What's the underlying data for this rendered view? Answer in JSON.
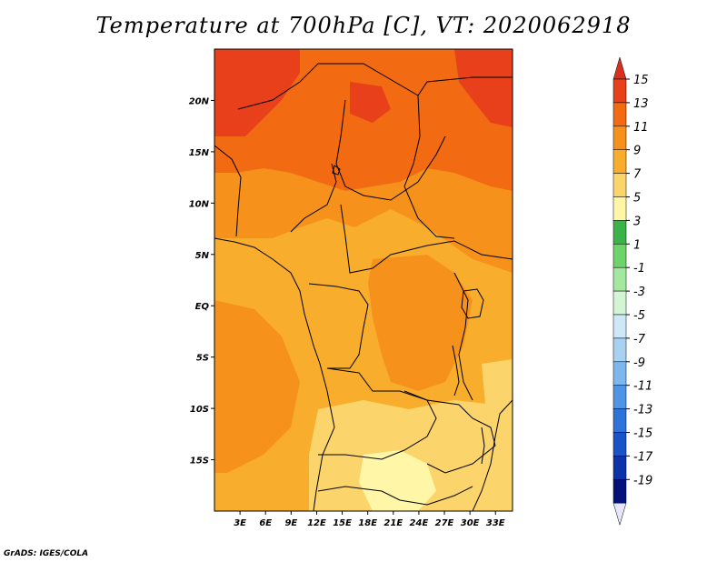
{
  "title": "Temperature at 700hPa [C], VT: 2020062918",
  "credit": "GrADS: IGES/COLA",
  "map": {
    "lon_range": [
      0,
      35
    ],
    "lat_range": [
      -20,
      25
    ],
    "lon_ticks": [
      "3E",
      "6E",
      "9E",
      "12E",
      "15E",
      "18E",
      "21E",
      "24E",
      "27E",
      "30E",
      "33E"
    ],
    "lat_ticks": [
      "20N",
      "15N",
      "10N",
      "5N",
      "EQ",
      "5S",
      "10S",
      "15S"
    ]
  },
  "colorbar": {
    "labels": [
      "15",
      "13",
      "11",
      "9",
      "7",
      "5",
      "3",
      "1",
      "-1",
      "-3",
      "-5",
      "-7",
      "-9",
      "-11",
      "-13",
      "-15",
      "-17",
      "-19"
    ],
    "top_arrow_color": "#d7301f",
    "bottom_arrow_color": "#e6e6fa",
    "colors": [
      "#e8401a",
      "#f26a12",
      "#f6921c",
      "#f9ad2c",
      "#fbd56b",
      "#fff6a8",
      "#3cb24a",
      "#6ed36a",
      "#a3e89e",
      "#d4f5d4",
      "#cfe8f7",
      "#a9d2f2",
      "#7db7ec",
      "#5095e4",
      "#2f73d8",
      "#1a52c8",
      "#0c33a8",
      "#05127a"
    ]
  },
  "field_colors": {
    "t13_15": "#e8401a",
    "t11_13": "#f26a12",
    "t9_11": "#f6921c",
    "t7_9": "#f9ad2c",
    "t5_7": "#fbd56b",
    "t3_5": "#fff6a8"
  }
}
